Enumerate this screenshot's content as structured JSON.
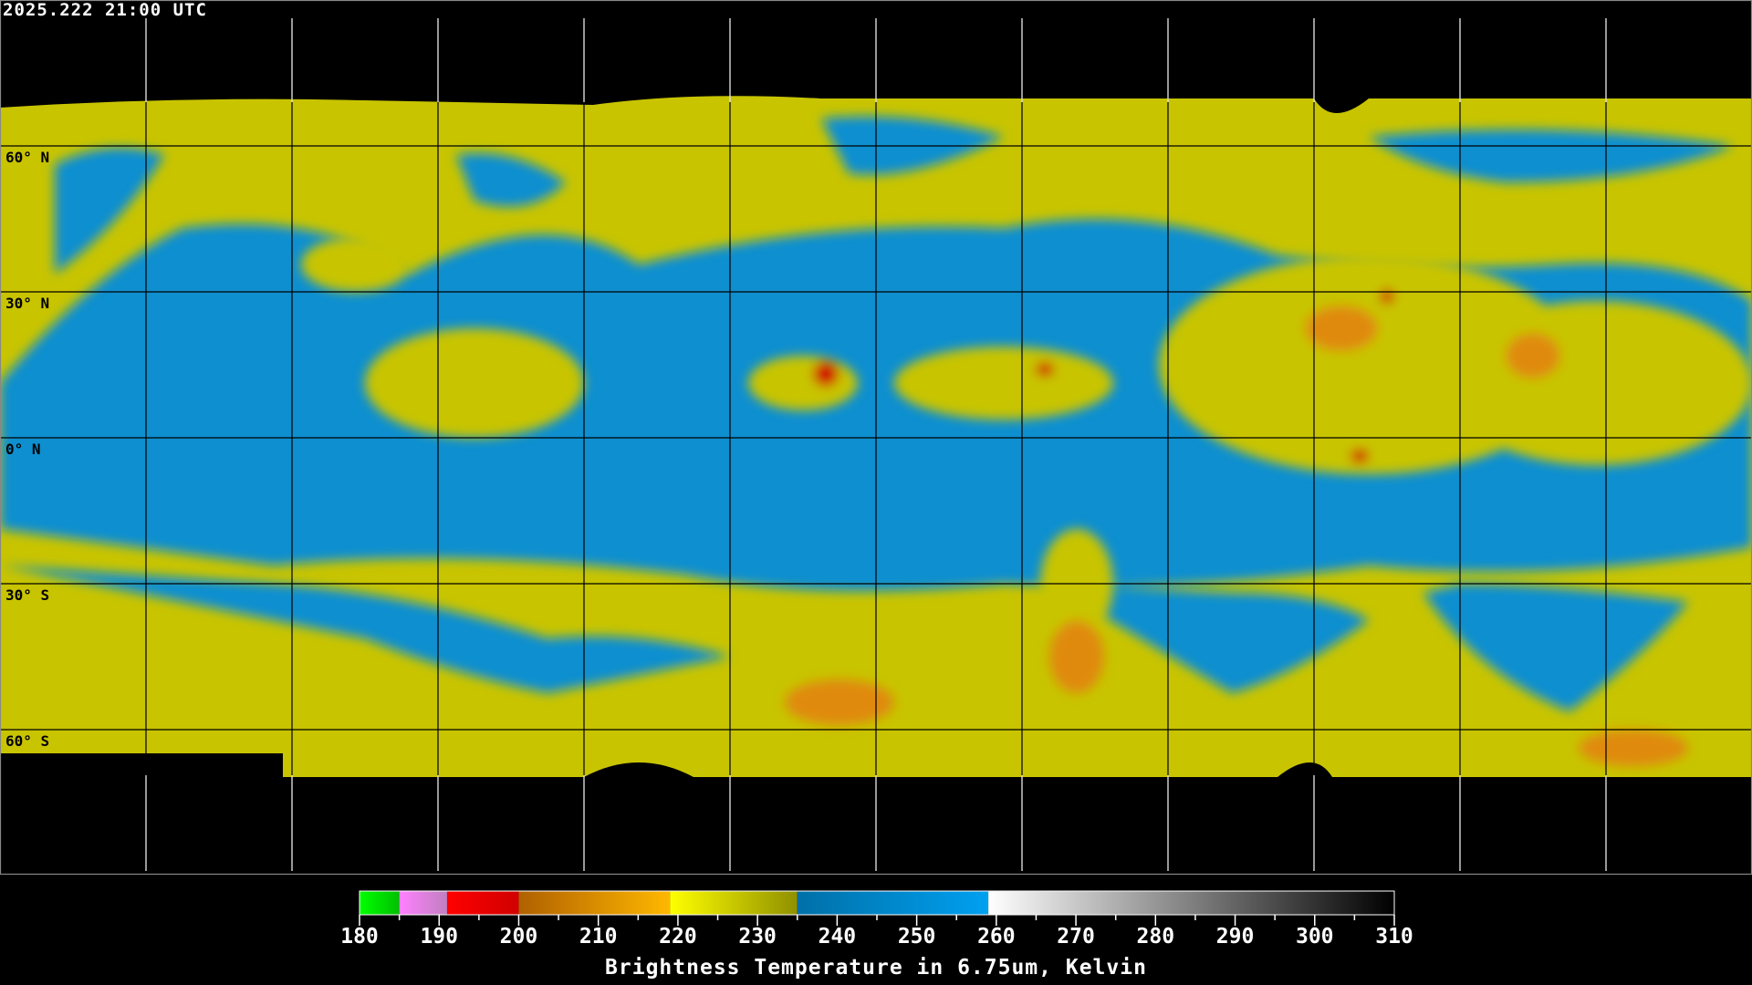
{
  "title": "2025.222 21:00 UTC",
  "latitude_labels": [
    "60° N",
    "30° N",
    "0° N",
    "30° S",
    "60° S"
  ],
  "colors": {
    "cold_cloud_yellow": "#c8c400",
    "dry_blue": "#0a8fd0",
    "background": "#000000",
    "grid": "#ffffff"
  },
  "colorbar": {
    "title": "Brightness Temperature in 6.75um, Kelvin",
    "range": [
      180,
      310
    ],
    "ticks": [
      "180",
      "190",
      "200",
      "210",
      "220",
      "230",
      "240",
      "250",
      "260",
      "270",
      "280",
      "290",
      "300",
      "310"
    ],
    "segments": [
      {
        "from": 180,
        "to": 185,
        "start": "#00ff00",
        "end": "#00c000"
      },
      {
        "from": 185,
        "to": 191,
        "start": "#ff80ff",
        "end": "#c080c0"
      },
      {
        "from": 191,
        "to": 200,
        "start": "#ff0000",
        "end": "#d00000"
      },
      {
        "from": 200,
        "to": 219,
        "start": "#b06000",
        "end": "#ffb800"
      },
      {
        "from": 219,
        "to": 235,
        "start": "#ffff00",
        "end": "#909000"
      },
      {
        "from": 235,
        "to": 259,
        "start": "#0070a8",
        "end": "#00a0f0"
      },
      {
        "from": 259,
        "to": 310,
        "start": "#ffffff",
        "end": "#000000"
      }
    ]
  }
}
